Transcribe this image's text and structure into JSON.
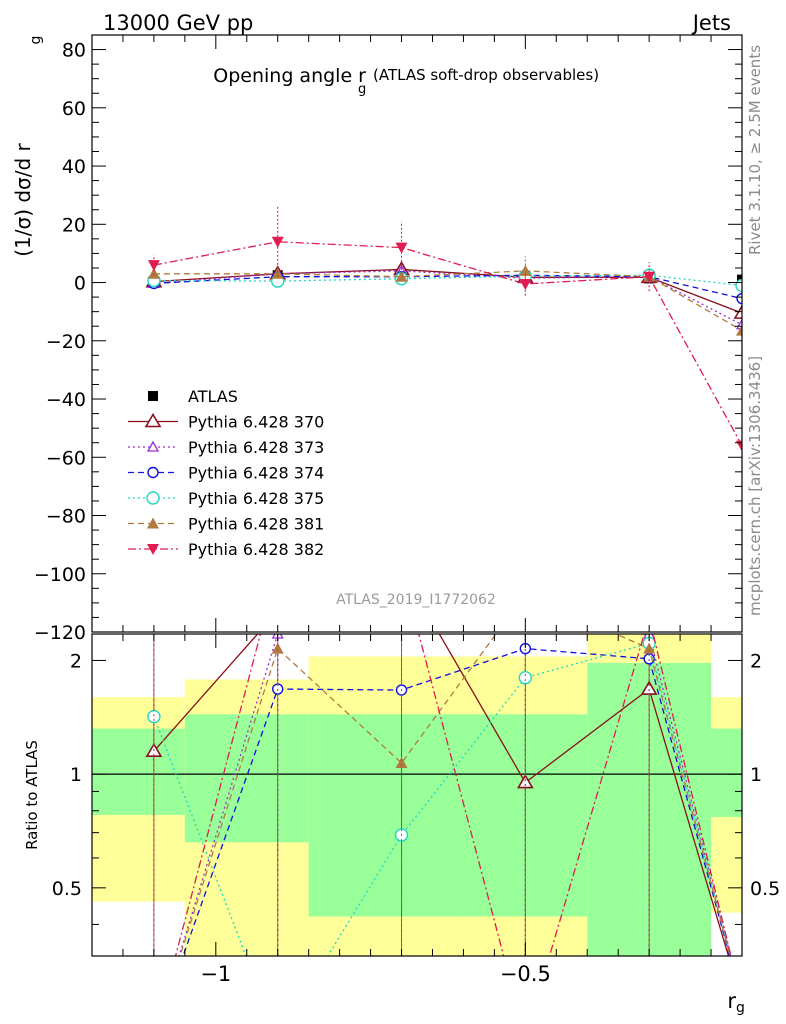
{
  "header": {
    "left": "13000 GeV pp",
    "right": "Jets"
  },
  "side_labels": {
    "top": "Rivet 3.1.10, ≥ 2.5M events",
    "bottom": "mcplots.cern.ch [arXiv:1306.3436]"
  },
  "plot_title": {
    "main": "Opening angle r",
    "sub": "g",
    "paren": "(ATLAS soft-drop observables)"
  },
  "watermark": "ATLAS_2019_I1772062",
  "chart_data": [
    {
      "panel": "main",
      "type": "line",
      "xlabel": "r",
      "xlabel_sub": "g",
      "ylabel": "(1/σ) dσ/d r",
      "ylabel_sub": "g",
      "xlim": [
        -1.2,
        -0.15
      ],
      "ylim": [
        -120,
        85
      ],
      "yticks": [
        80,
        60,
        40,
        20,
        0,
        -20,
        -40,
        -60,
        -80,
        -100,
        -120
      ],
      "x": [
        -1.1,
        -0.9,
        -0.7,
        -0.5,
        -0.3,
        -0.15
      ],
      "series": [
        {
          "name": "ATLAS",
          "color": "#000000",
          "marker": "square-filled",
          "line": "none",
          "values": [
            0.3,
            2.5,
            2.0,
            2.3,
            1.4,
            1.0
          ],
          "err": [
            0.5,
            0.5,
            0.5,
            0.5,
            0.5,
            0.5
          ]
        },
        {
          "name": "Pythia 6.428 370",
          "color": "#8b0f1a",
          "marker": "triangle-open",
          "line": "solid",
          "values": [
            0.3,
            3.0,
            4.5,
            1.8,
            1.8,
            -10.5
          ],
          "err": [
            0.8,
            1.2,
            1.5,
            1.2,
            1.0,
            5.0
          ]
        },
        {
          "name": "Pythia 6.428 373",
          "color": "#9b2ed1",
          "marker": "triangle-open-small",
          "line": "dotted",
          "values": [
            -0.3,
            3.0,
            4.0,
            1.5,
            2.0,
            -14.5
          ],
          "err": [
            0.8,
            1.2,
            1.5,
            1.2,
            1.0,
            5.0
          ]
        },
        {
          "name": "Pythia 6.428 374",
          "color": "#1010e0",
          "marker": "circle-open",
          "line": "dashed",
          "values": [
            -0.3,
            2.0,
            2.0,
            2.5,
            2.0,
            -5.5
          ],
          "err": [
            0.8,
            1.2,
            1.5,
            1.2,
            1.0,
            3.0
          ]
        },
        {
          "name": "Pythia 6.428 375",
          "color": "#20d8c0",
          "marker": "circle-open-large",
          "line": "dotted",
          "values": [
            0.7,
            0.5,
            1.3,
            2.2,
            2.5,
            -1.0
          ],
          "err": [
            0.8,
            1.2,
            1.5,
            1.2,
            1.0,
            2.0
          ]
        },
        {
          "name": "Pythia 6.428 381",
          "color": "#b07a40",
          "marker": "triangle-filled",
          "line": "dashed",
          "values": [
            3.0,
            3.0,
            2.0,
            4.0,
            2.0,
            -16.5
          ],
          "err": [
            1.0,
            1.2,
            1.5,
            5.0,
            1.0,
            5.0
          ]
        },
        {
          "name": "Pythia 6.428 382",
          "color": "#e01c50",
          "marker": "triangle-down-filled",
          "line": "dashdot",
          "values": [
            6.0,
            14.0,
            12.0,
            -0.5,
            2.0,
            -56.0
          ],
          "err": [
            3.5,
            12.0,
            9.0,
            4.0,
            5.0,
            41.0
          ]
        }
      ],
      "legend_position": "middle-left"
    },
    {
      "panel": "ratio",
      "type": "line",
      "ylabel": "Ratio to ATLAS",
      "yscale": "log",
      "ylim": [
        0.33,
        2.35
      ],
      "yticks": [
        2,
        1,
        0.5
      ],
      "xticks": [
        -1,
        -0.5
      ],
      "reference_line": 1,
      "bins": [
        -1.25,
        -1.05,
        -0.85,
        -0.6,
        -0.4,
        -0.2,
        -0.1
      ],
      "band_inner": [
        [
          0.78,
          1.32
        ],
        [
          0.66,
          1.44
        ],
        [
          0.42,
          1.44
        ],
        [
          0.42,
          1.44
        ],
        [
          0.3,
          1.97
        ],
        [
          0.77,
          1.32
        ]
      ],
      "band_outer": [
        [
          0.46,
          1.6
        ],
        [
          0.3,
          1.78
        ],
        [
          0.3,
          2.05
        ],
        [
          0.3,
          2.05
        ],
        [
          0.3,
          2.45
        ],
        [
          0.43,
          1.6
        ]
      ],
      "x": [
        -1.1,
        -0.9,
        -0.7,
        -0.5,
        -0.3,
        -0.15
      ],
      "series": [
        {
          "name": "Pythia 6.428 370",
          "values": [
            1.15,
            2.7,
            3.5,
            0.95,
            1.68,
            0.25
          ]
        },
        {
          "name": "Pythia 6.428 373",
          "values": [
            0.2,
            2.35,
            3.2,
            2.8,
            2.35,
            0.25
          ]
        },
        {
          "name": "Pythia 6.428 374",
          "values": [
            0.2,
            1.68,
            1.67,
            2.15,
            2.02,
            0.25
          ]
        },
        {
          "name": "Pythia 6.428 375",
          "values": [
            1.42,
            0.2,
            0.69,
            1.8,
            2.22,
            0.25
          ]
        },
        {
          "name": "Pythia 6.428 381",
          "values": [
            0.2,
            2.15,
            1.07,
            3.0,
            2.15,
            0.25
          ]
        },
        {
          "name": "Pythia 6.428 382",
          "values": [
            0.2,
            3.5,
            3.5,
            0.2,
            2.6,
            0.25
          ]
        }
      ]
    }
  ]
}
